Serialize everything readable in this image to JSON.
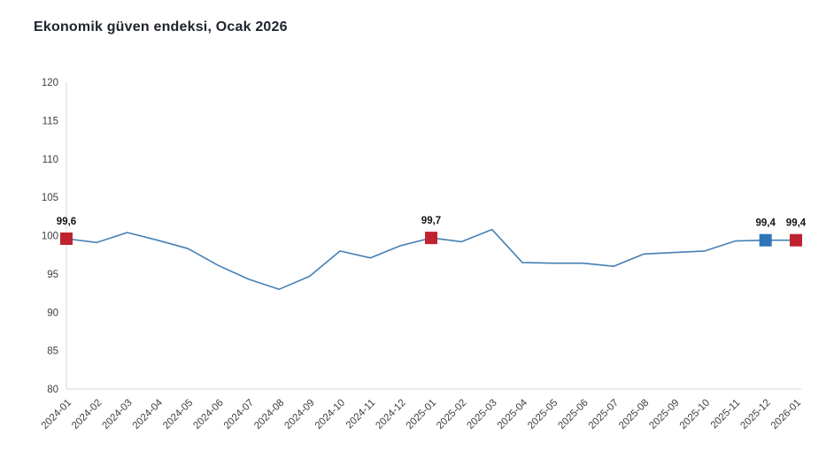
{
  "title": "Ekonomik güven endeksi, Ocak 2026",
  "chart_data": {
    "type": "line",
    "title": "Ekonomik güven endeksi, Ocak 2026",
    "x": [
      "2024-01",
      "2024-02",
      "2024-03",
      "2024-04",
      "2024-05",
      "2024-06",
      "2024-07",
      "2024-08",
      "2024-09",
      "2024-10",
      "2024-11",
      "2024-12",
      "2025-01",
      "2025-02",
      "2025-03",
      "2025-04",
      "2025-05",
      "2025-06",
      "2025-07",
      "2025-08",
      "2025-09",
      "2025-10",
      "2025-11",
      "2025-12",
      "2026-01"
    ],
    "values": [
      99.6,
      99.1,
      100.4,
      99.4,
      98.3,
      96.1,
      94.3,
      93.0,
      94.7,
      98.0,
      97.1,
      98.7,
      99.7,
      99.2,
      100.8,
      96.5,
      96.4,
      96.4,
      96.0,
      97.6,
      97.8,
      98.0,
      99.3,
      99.4,
      99.4
    ],
    "ylim": [
      80,
      120
    ],
    "yticks": [
      80,
      85,
      90,
      95,
      100,
      105,
      110,
      115,
      120
    ],
    "grid": false,
    "legend": "none",
    "xlabel": "",
    "ylabel": "",
    "line_color": "#4580b4",
    "axis_color": "#d9d9d9",
    "tick_label_color": "#3f3f3f",
    "annotation_label_color": "#141414",
    "annotated_points": [
      {
        "x": "2024-01",
        "label": "99,6",
        "marker_color": "#bf2330"
      },
      {
        "x": "2025-01",
        "label": "99,7",
        "marker_color": "#bf2330"
      },
      {
        "x": "2025-12",
        "label": "99,4",
        "marker_color": "#2e75b6"
      },
      {
        "x": "2026-01",
        "label": "99,4",
        "marker_color": "#bf2330"
      }
    ]
  }
}
